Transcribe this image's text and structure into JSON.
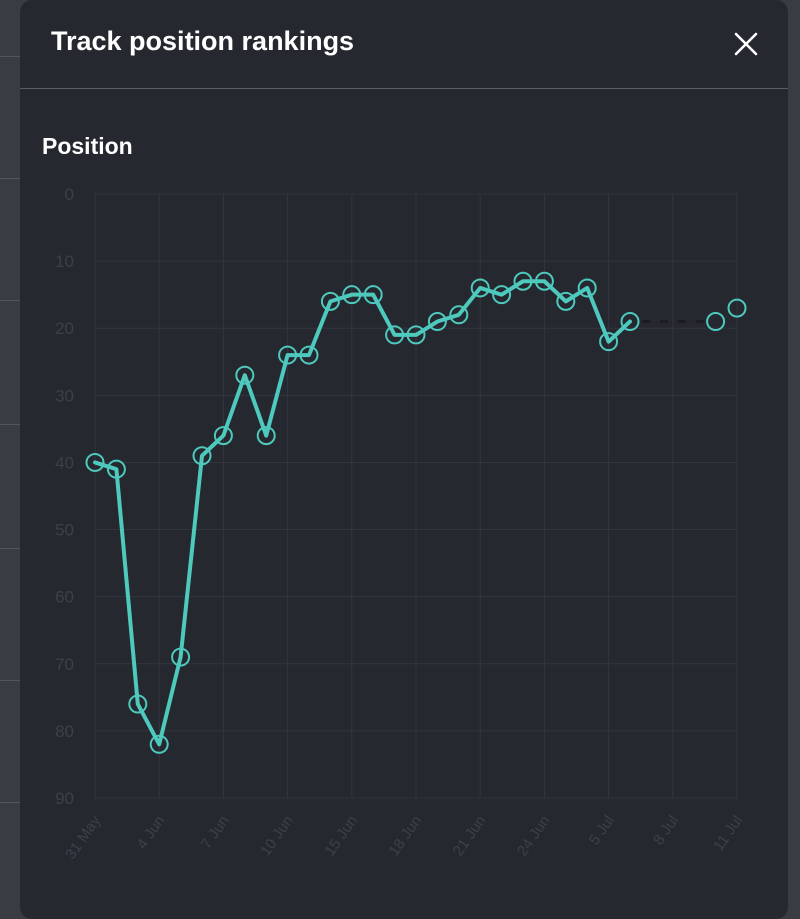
{
  "modal": {
    "title": "Track position rankings",
    "close_icon": "close-icon"
  },
  "colors": {
    "background": "#262830",
    "line": "#4ec9bd",
    "grid": "#33353e",
    "ghost_tick": "#3e4049"
  },
  "chart_data": {
    "type": "line",
    "title": "",
    "ylabel": "Position",
    "xlabel": "",
    "y_inverted": true,
    "ylim": [
      0,
      90
    ],
    "y_ticks": [
      0,
      10,
      20,
      30,
      40,
      50,
      60,
      70,
      80,
      90
    ],
    "grid": true,
    "x_tick_labels": [
      "31 May",
      "4 Jun",
      "7 Jun",
      "10 Jun",
      "15 Jun",
      "18 Jun",
      "21 Jun",
      "24 Jun",
      "5 Jul",
      "8 Jul",
      "11 Jul"
    ],
    "series": [
      {
        "values": [
          40,
          41,
          76,
          82,
          69,
          39,
          36,
          27,
          36,
          24,
          24,
          16,
          15,
          15,
          21,
          21,
          19,
          18,
          14,
          15,
          13,
          13,
          16,
          14,
          22,
          19
        ],
        "gap_points": [
          {
            "index": 29,
            "value": 19
          },
          {
            "index": 30,
            "value": 17
          }
        ]
      }
    ]
  }
}
